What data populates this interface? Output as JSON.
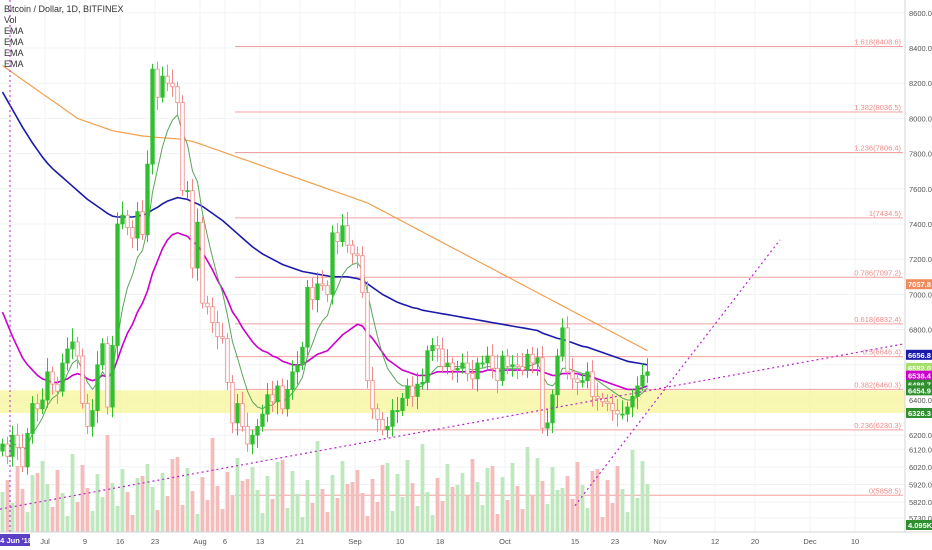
{
  "header": {
    "title": "Bitcoin / Dollar, 1D, BITFINEX",
    "indicators": [
      "Vol",
      "EMA",
      "EMA",
      "EMA",
      "EMA"
    ]
  },
  "colors": {
    "up": "#2fbf2f",
    "down": "#f08a8a",
    "ema_fast": "#5aa65a",
    "ema_mid": "#cc00cc",
    "ema_slow": "#1a1aaa",
    "ema_long": "#f0a050",
    "fib": "#f5a0a0",
    "trend": "#bb22cc",
    "zone": "#f5f59a",
    "vol_up": "#bfe8bf",
    "vol_down": "#f5bcbc"
  },
  "chart_data": {
    "type": "candlestick",
    "symbol": "Bitcoin / Dollar",
    "interval": "1D",
    "exchange": "BITFINEX",
    "y_axis": {
      "min": 5650,
      "max": 8650,
      "ticks": [
        8600,
        8400,
        8200,
        8000,
        7800,
        7600,
        7400,
        7200,
        7000,
        6800,
        6600,
        6400,
        6200,
        6120,
        6020,
        5920,
        5820,
        5730
      ]
    },
    "x_axis": {
      "start": "2018-06-22",
      "end": "2018-12-20",
      "ticks": [
        {
          "label": "24 Jun '18",
          "date": "2018-06-24"
        },
        {
          "label": "Jul",
          "date": "2018-07-01"
        },
        {
          "label": "9",
          "date": "2018-07-09"
        },
        {
          "label": "16",
          "date": "2018-07-16"
        },
        {
          "label": "23",
          "date": "2018-07-23"
        },
        {
          "label": "Aug",
          "date": "2018-08-01"
        },
        {
          "label": "6",
          "date": "2018-08-06"
        },
        {
          "label": "13",
          "date": "2018-08-13"
        },
        {
          "label": "21",
          "date": "2018-08-21"
        },
        {
          "label": "Sep",
          "date": "2018-09-01"
        },
        {
          "label": "10",
          "date": "2018-09-10"
        },
        {
          "label": "18",
          "date": "2018-09-18"
        },
        {
          "label": "Oct",
          "date": "2018-10-01"
        },
        {
          "label": "15",
          "date": "2018-10-15"
        },
        {
          "label": "23",
          "date": "2018-10-23"
        },
        {
          "label": "Nov",
          "date": "2018-11-01"
        },
        {
          "label": "12",
          "date": "2018-11-12"
        },
        {
          "label": "20",
          "date": "2018-11-20"
        },
        {
          "label": "Dec",
          "date": "2018-12-01"
        },
        {
          "label": "10",
          "date": "2018-12-10"
        }
      ]
    },
    "close": [
      6150,
      6080,
      6200,
      6130,
      6020,
      6210,
      6380,
      6350,
      6400,
      6560,
      6490,
      6450,
      6610,
      6690,
      6730,
      6650,
      6380,
      6250,
      6340,
      6600,
      6720,
      6360,
      6710,
      7400,
      7450,
      7380,
      7320,
      7470,
      7340,
      7740,
      8280,
      8120,
      8240,
      8200,
      8180,
      8090,
      7590,
      7590,
      7150,
      7410,
      6950,
      6930,
      6840,
      6760,
      6750,
      6500,
      6270,
      6380,
      6250,
      6150,
      6200,
      6250,
      6320,
      6430,
      6390,
      6480,
      6350,
      6460,
      6560,
      6600,
      6700,
      7040,
      6970,
      7060,
      7050,
      7000,
      7350,
      7300,
      7390,
      7280,
      7230,
      7220,
      7010,
      6510,
      6350,
      6290,
      6230,
      6250,
      6340,
      6340,
      6410,
      6480,
      6420,
      6490,
      6500,
      6680,
      6710,
      6690,
      6590,
      6610,
      6570,
      6580,
      6610,
      6550,
      6520,
      6610,
      6610,
      6650,
      6580,
      6510,
      6650,
      6590,
      6600,
      6590,
      6570,
      6660,
      6610,
      6640,
      6240,
      6270,
      6430,
      6650,
      6810,
      6560,
      6520,
      6500,
      6510,
      6560,
      6420,
      6410,
      6390,
      6380,
      6340,
      6320,
      6320,
      6360,
      6420,
      6480,
      6540,
      6560
    ],
    "ema_fast": [
      6150,
      6130,
      6150,
      6145,
      6110,
      6140,
      6210,
      6250,
      6300,
      6370,
      6410,
      6430,
      6480,
      6550,
      6610,
      6630,
      6570,
      6500,
      6460,
      6500,
      6560,
      6520,
      6570,
      6750,
      6920,
      7040,
      7110,
      7210,
      7250,
      7370,
      7580,
      7710,
      7840,
      7930,
      7990,
      8020,
      7920,
      7850,
      7700,
      7640,
      7460,
      7330,
      7210,
      7100,
      7010,
      6880,
      6730,
      6640,
      6540,
      6450,
      6390,
      6360,
      6350,
      6370,
      6370,
      6400,
      6390,
      6410,
      6440,
      6480,
      6530,
      6650,
      6720,
      6800,
      6850,
      6880,
      6980,
      7040,
      7110,
      7150,
      7170,
      7180,
      7140,
      7010,
      6880,
      6760,
      6660,
      6580,
      6540,
      6500,
      6480,
      6480,
      6470,
      6470,
      6480,
      6520,
      6560,
      6590,
      6590,
      6590,
      6590,
      6590,
      6590,
      6580,
      6570,
      6580,
      6580,
      6590,
      6590,
      6570,
      6580,
      6580,
      6580,
      6580,
      6580,
      6590,
      6600,
      6610,
      6540,
      6490,
      6480,
      6510,
      6580,
      6580,
      6570,
      6560,
      6550,
      6550,
      6530,
      6510,
      6490,
      6470,
      6450,
      6430,
      6410,
      6400,
      6400,
      6420,
      6440,
      6470
    ],
    "ema_mid": [
      6900,
      6830,
      6760,
      6700,
      6640,
      6600,
      6570,
      6540,
      6520,
      6510,
      6500,
      6500,
      6510,
      6520,
      6540,
      6550,
      6540,
      6520,
      6510,
      6520,
      6540,
      6530,
      6550,
      6630,
      6710,
      6780,
      6830,
      6900,
      6950,
      7020,
      7120,
      7190,
      7260,
      7310,
      7340,
      7350,
      7340,
      7330,
      7300,
      7280,
      7240,
      7190,
      7140,
      7080,
      7030,
      6970,
      6900,
      6860,
      6810,
      6770,
      6730,
      6700,
      6680,
      6670,
      6650,
      6640,
      6620,
      6610,
      6600,
      6600,
      6600,
      6620,
      6640,
      6660,
      6670,
      6680,
      6710,
      6740,
      6770,
      6790,
      6810,
      6830,
      6820,
      6780,
      6750,
      6710,
      6670,
      6630,
      6610,
      6590,
      6570,
      6560,
      6550,
      6540,
      6540,
      6540,
      6550,
      6560,
      6560,
      6560,
      6560,
      6560,
      6560,
      6560,
      6560,
      6560,
      6560,
      6570,
      6570,
      6560,
      6570,
      6570,
      6570,
      6570,
      6570,
      6570,
      6570,
      6570,
      6560,
      6550,
      6540,
      6540,
      6550,
      6550,
      6550,
      6550,
      6540,
      6540,
      6530,
      6520,
      6510,
      6500,
      6490,
      6480,
      6470,
      6460,
      6460,
      6460,
      6470,
      6480
    ],
    "ema_slow": [
      8150,
      8100,
      8050,
      8000,
      7950,
      7905,
      7860,
      7820,
      7780,
      7745,
      7715,
      7690,
      7665,
      7640,
      7615,
      7590,
      7565,
      7540,
      7520,
      7500,
      7480,
      7460,
      7445,
      7440,
      7440,
      7440,
      7440,
      7445,
      7450,
      7460,
      7480,
      7495,
      7515,
      7530,
      7540,
      7550,
      7545,
      7540,
      7525,
      7515,
      7500,
      7480,
      7460,
      7440,
      7420,
      7395,
      7370,
      7345,
      7320,
      7295,
      7270,
      7250,
      7230,
      7215,
      7200,
      7185,
      7170,
      7160,
      7150,
      7140,
      7130,
      7125,
      7120,
      7115,
      7110,
      7105,
      7100,
      7100,
      7100,
      7100,
      7095,
      7090,
      7080,
      7060,
      7040,
      7020,
      7000,
      6985,
      6970,
      6955,
      6945,
      6935,
      6925,
      6920,
      6910,
      6905,
      6900,
      6895,
      6890,
      6885,
      6880,
      6875,
      6870,
      6865,
      6860,
      6855,
      6850,
      6845,
      6840,
      6835,
      6830,
      6825,
      6820,
      6815,
      6810,
      6805,
      6800,
      6795,
      6780,
      6770,
      6760,
      6750,
      6745,
      6735,
      6725,
      6715,
      6705,
      6700,
      6690,
      6680,
      6670,
      6660,
      6650,
      6640,
      6630,
      6620,
      6615,
      6610,
      6605,
      6600
    ],
    "ema_long": [
      8300,
      8280,
      8260,
      8240,
      8220,
      8200,
      8180,
      8160,
      8140,
      8120,
      8100,
      8080,
      8060,
      8040,
      8020,
      8000,
      7990,
      7980,
      7970,
      7960,
      7950,
      7940,
      7930,
      7925,
      7920,
      7915,
      7910,
      7905,
      7900,
      7898,
      7895,
      7892,
      7890,
      7888,
      7886,
      7884,
      7880,
      7875,
      7868,
      7860,
      7850,
      7840,
      7830,
      7820,
      7810,
      7800,
      7790,
      7780,
      7770,
      7760,
      7750,
      7740,
      7730,
      7720,
      7710,
      7700,
      7690,
      7680,
      7670,
      7660,
      7650,
      7640,
      7630,
      7620,
      7610,
      7600,
      7590,
      7580,
      7570,
      7560,
      7550,
      7540,
      7530,
      7520,
      7505,
      7490,
      7475,
      7460,
      7445,
      7430,
      7415,
      7400,
      7385,
      7370,
      7355,
      7340,
      7325,
      7310,
      7295,
      7280,
      7265,
      7250,
      7235,
      7220,
      7205,
      7190,
      7175,
      7160,
      7145,
      7130,
      7115,
      7100,
      7085,
      7070,
      7055,
      7040,
      7025,
      7010,
      6995,
      6980,
      6965,
      6950,
      6935,
      6920,
      6905,
      6890,
      6875,
      6860,
      6845,
      6830,
      6815,
      6800,
      6785,
      6770,
      6755,
      6740,
      6725,
      6710,
      6695,
      6680
    ],
    "fib_levels": [
      {
        "ratio": "1.618",
        "price": 8408.6,
        "label": "1.618(8408.6)"
      },
      {
        "ratio": "1.382",
        "price": 8036.5,
        "label": "1.382(8036.5)"
      },
      {
        "ratio": "1.236",
        "price": 7806.4,
        "label": "1.236(7806.4)"
      },
      {
        "ratio": "1",
        "price": 7434.5,
        "label": "1(7434.5)"
      },
      {
        "ratio": "0.786",
        "price": 7097.2,
        "label": "0.786(7097.2)"
      },
      {
        "ratio": "0.618",
        "price": 6832.4,
        "label": "0.618(6832.4)"
      },
      {
        "ratio": "0.5",
        "price": 6646.4,
        "label": "0.5(6646.4)"
      },
      {
        "ratio": "0.382",
        "price": 6460.3,
        "label": "0.382(6460.3)"
      },
      {
        "ratio": "0.236",
        "price": 6230.3,
        "label": "0.236(6230.3)"
      },
      {
        "ratio": "0",
        "price": 5858.5,
        "label": "0(5858.5)"
      }
    ],
    "highlight_zone": {
      "from": 6326.3,
      "to": 6454.9
    },
    "price_tags": [
      {
        "label": "7057.8",
        "price": 7057.8,
        "color": "#f08a5a"
      },
      {
        "label": "6656.8",
        "price": 6656.8,
        "color": "#1a1aaa"
      },
      {
        "label": "6582.0",
        "price": 6582.0,
        "color": "#a6e06a"
      },
      {
        "label": "6538.4",
        "price": 6538.4,
        "color": "#cc00cc"
      },
      {
        "label": "6486.7",
        "price": 6486.7,
        "color": "#2f8f2f"
      },
      {
        "label": "6454.9",
        "price": 6454.9,
        "color": "#2f8f2f"
      },
      {
        "label": "6326.3",
        "price": 6326.3,
        "color": "#2f8f2f"
      }
    ],
    "volume_label": "4.095K",
    "trendlines": [
      {
        "from": {
          "date": "2018-06-22",
          "price": 5780
        },
        "to": {
          "date": "2018-12-20",
          "price": 6720
        },
        "style": "dotted"
      },
      {
        "from": {
          "date": "2018-10-15",
          "price": 5800
        },
        "to": {
          "date": "2018-11-25",
          "price": 7310
        },
        "style": "dotted"
      }
    ],
    "vertical_marker": {
      "date": "2018-06-24"
    }
  }
}
